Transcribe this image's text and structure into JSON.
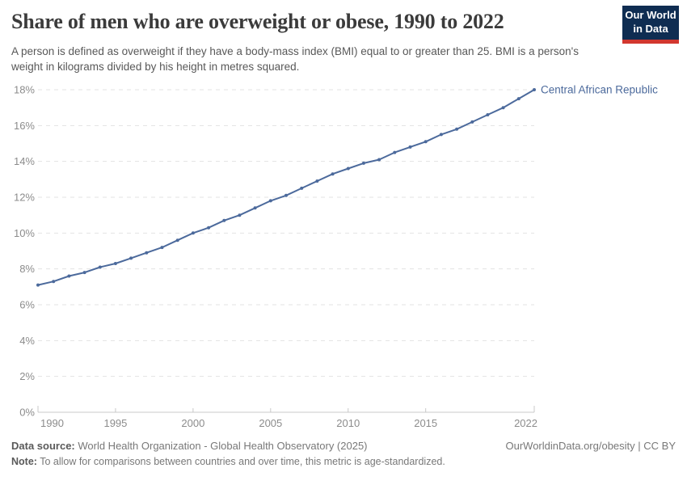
{
  "header": {
    "title": "Share of men who are overweight or obese, 1990 to 2022",
    "subtitle": "A person is defined as overweight if they have a body-mass index (BMI) equal to or greater than 25. BMI is a person's weight in kilograms divided by his height in metres squared.",
    "logo": {
      "line1": "Our World",
      "line2": "in Data",
      "bg_color": "#0f2d52",
      "bar_color": "#d2372f"
    }
  },
  "chart_data": {
    "type": "line",
    "title": "Share of men who are overweight or obese, 1990 to 2022",
    "xlabel": "",
    "ylabel": "",
    "x": [
      1990,
      1991,
      1992,
      1993,
      1994,
      1995,
      1996,
      1997,
      1998,
      1999,
      2000,
      2001,
      2002,
      2003,
      2004,
      2005,
      2006,
      2007,
      2008,
      2009,
      2010,
      2011,
      2012,
      2013,
      2014,
      2015,
      2016,
      2017,
      2018,
      2019,
      2020,
      2021,
      2022
    ],
    "series": [
      {
        "name": "Central African Republic",
        "color": "#4c6a9c",
        "values": [
          7.1,
          7.3,
          7.6,
          7.8,
          8.1,
          8.3,
          8.6,
          8.9,
          9.2,
          9.6,
          10.0,
          10.3,
          10.7,
          11.0,
          11.4,
          11.8,
          12.1,
          12.5,
          12.9,
          13.3,
          13.6,
          13.9,
          14.1,
          14.5,
          14.8,
          15.1,
          15.5,
          15.8,
          16.2,
          16.6,
          17.0,
          17.5,
          18.0
        ]
      }
    ],
    "xlim": [
      1990,
      2022
    ],
    "ylim": [
      0,
      18
    ],
    "y_ticks": [
      {
        "value": 0,
        "label": "0%"
      },
      {
        "value": 2,
        "label": "2%"
      },
      {
        "value": 4,
        "label": "4%"
      },
      {
        "value": 6,
        "label": "6%"
      },
      {
        "value": 8,
        "label": "8%"
      },
      {
        "value": 10,
        "label": "10%"
      },
      {
        "value": 12,
        "label": "12%"
      },
      {
        "value": 14,
        "label": "14%"
      },
      {
        "value": 16,
        "label": "16%"
      },
      {
        "value": 18,
        "label": "18%"
      }
    ],
    "x_ticks": [
      {
        "value": 1990,
        "label": "1990"
      },
      {
        "value": 1995,
        "label": "1995"
      },
      {
        "value": 2000,
        "label": "2000"
      },
      {
        "value": 2005,
        "label": "2005"
      },
      {
        "value": 2010,
        "label": "2010"
      },
      {
        "value": 2015,
        "label": "2015"
      },
      {
        "value": 2022,
        "label": "2022"
      }
    ],
    "grid": "horizontal-dashed",
    "legend_position": "end-of-line",
    "colors": {
      "gridline": "#e3e3e3",
      "axis": "#c8c8c8",
      "tick_text": "#8c8c8c"
    }
  },
  "footer": {
    "datasource_label": "Data source:",
    "datasource_text": " World Health Organization - Global Health Observatory (2025)",
    "link_text": "OurWorldinData.org/obesity | CC BY",
    "note_label": "Note:",
    "note_text": " To allow for comparisons between countries and over time, this metric is age-standardized."
  }
}
